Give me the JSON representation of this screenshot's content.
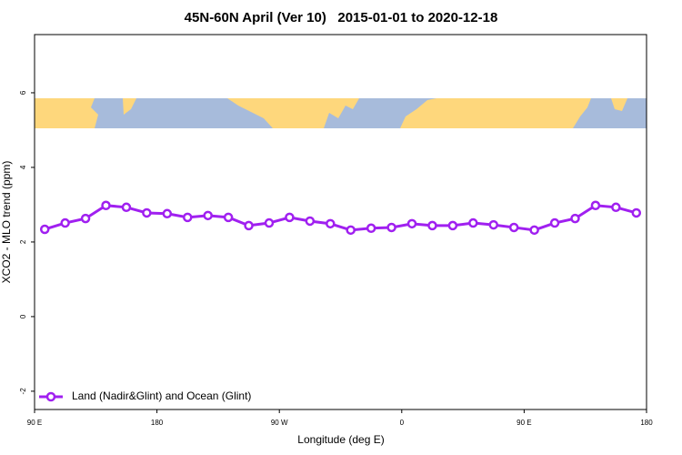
{
  "chart_data": {
    "type": "line",
    "title": "45N-60N April (Ver 10)   2015-01-01 to 2020-12-18",
    "x_label": "Longitude (deg E)",
    "y_label": "XCO2 - MLO trend (ppm)",
    "xlim": [
      90,
      540
    ],
    "ylim": [
      -2.49,
      7.56
    ],
    "xticks": [
      {
        "value": 90,
        "label": "90 E"
      },
      {
        "value": 180,
        "label": "180"
      },
      {
        "value": 270,
        "label": "90 W"
      },
      {
        "value": 360,
        "label": "0"
      },
      {
        "value": 450,
        "label": "90 E"
      },
      {
        "value": 540,
        "label": "180"
      }
    ],
    "yticks": [
      -2,
      0,
      2,
      4,
      6
    ],
    "legend_position": "bottom-left",
    "x": [
      97.5,
      112.5,
      127.5,
      142.5,
      157.5,
      172.5,
      187.5,
      202.5,
      217.5,
      232.5,
      247.5,
      262.5,
      277.5,
      292.5,
      307.5,
      322.5,
      337.5,
      352.5,
      367.5,
      382.5,
      397.5,
      412.5,
      427.5,
      442.5,
      457.5,
      472.5,
      487.5,
      502.5,
      517.5,
      532.5
    ],
    "series": [
      {
        "name": "Land (Nadir&Glint) and Ocean (Glint)",
        "color": "#a020f0",
        "values": [
          2.34,
          2.51,
          2.63,
          2.98,
          2.93,
          2.78,
          2.76,
          2.66,
          2.71,
          2.66,
          2.44,
          2.51,
          2.66,
          2.56,
          2.49,
          2.32,
          2.37,
          2.39,
          2.49,
          2.44,
          2.44,
          2.51,
          2.46,
          2.39,
          2.32,
          2.51,
          2.63,
          2.98,
          2.93,
          2.78
        ]
      }
    ]
  }
}
